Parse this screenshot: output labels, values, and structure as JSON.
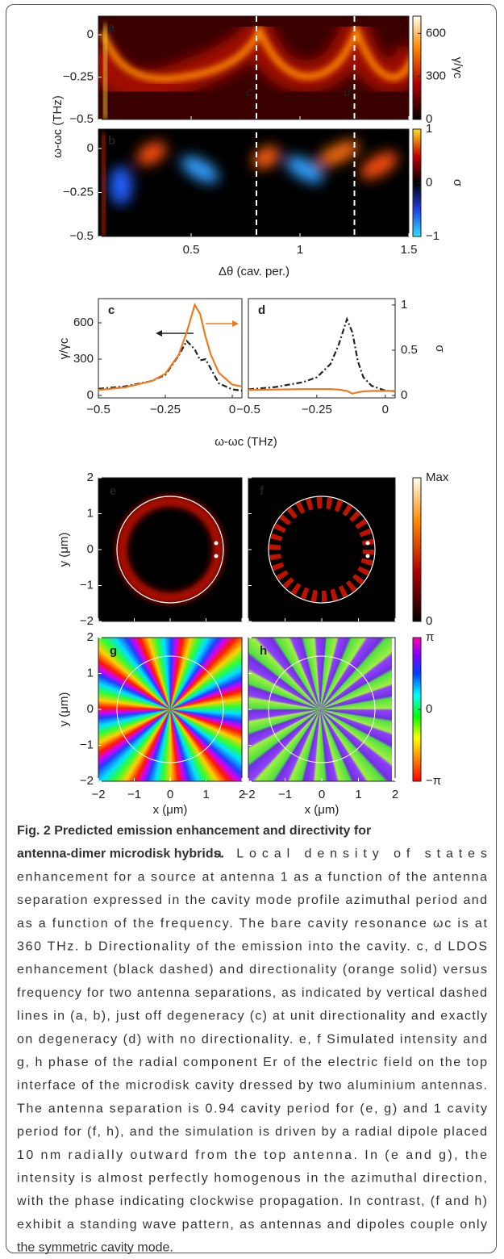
{
  "figure": {
    "panels_ab": {
      "xlabel": "Δθ (cav. per.)",
      "ylabel": "ω-ωc (THz)",
      "xlim": [
        0.074,
        1.5
      ],
      "xticks": [
        0.5,
        1,
        1.5
      ],
      "ylim": [
        -0.5,
        0.11
      ],
      "yticks": [
        {
          "value": 0,
          "label": "0"
        },
        {
          "value": -0.25,
          "label": "−0.25"
        },
        {
          "value": -0.5,
          "label": "−0.5"
        }
      ],
      "markers": [
        {
          "x": 0.8,
          "label": "c"
        },
        {
          "x": 1.25,
          "label": "d"
        }
      ],
      "a": {
        "label": "a",
        "colorbar": {
          "label": "γ/γc",
          "lim": [
            0,
            720
          ],
          "ticks": [
            0,
            300,
            600
          ]
        }
      },
      "b": {
        "label": "b",
        "colorbar": {
          "label": "σ",
          "lim": [
            -1,
            1
          ],
          "ticks": [
            {
              "value": -1,
              "label": "−1"
            },
            0,
            1
          ]
        }
      }
    },
    "panels_cd": {
      "type": "line",
      "xlabel": "ω-ωc (THz)",
      "ylabel": "γ/γc",
      "y2label": "σ",
      "xlim": [
        -0.5,
        0.036
      ],
      "xticks": [
        {
          "value": -0.5,
          "label": "−0.5"
        },
        {
          "value": -0.25,
          "label": "−0.25"
        },
        {
          "value": 0,
          "label": "0"
        }
      ],
      "ylim": [
        0,
        800
      ],
      "yticks": [
        0,
        300,
        600
      ],
      "y2lim": [
        0,
        1.07
      ],
      "y2ticks": [
        0,
        0.5,
        1
      ],
      "x": [
        -0.5,
        -0.4,
        -0.3,
        -0.25,
        -0.2,
        -0.17,
        -0.14,
        -0.12,
        -0.1,
        -0.08,
        -0.05,
        0,
        0.036
      ],
      "panels": [
        {
          "label": "c",
          "series": [
            {
              "color": "#222222",
              "dash": true,
              "values": [
                55,
                75,
                120,
                170,
                330,
                450,
                380,
                290,
                300,
                220,
                100,
                50,
                40
              ]
            },
            {
              "color": "#f07a1e",
              "axis": "y2",
              "values": [
                0.06,
                0.09,
                0.16,
                0.24,
                0.45,
                0.7,
                1.0,
                0.9,
                0.65,
                0.45,
                0.25,
                0.12,
                0.1
              ]
            }
          ]
        },
        {
          "label": "d",
          "series": [
            {
              "color": "#222222",
              "dash": true,
              "values": [
                50,
                70,
                110,
                150,
                260,
                420,
                630,
                520,
                280,
                150,
                80,
                40,
                35
              ]
            },
            {
              "color": "#f07a1e",
              "axis": "y2",
              "values": [
                0.06,
                0.065,
                0.07,
                0.07,
                0.07,
                0.065,
                0.05,
                0.02,
                0.035,
                0.045,
                0.05,
                0.05,
                0.05
              ]
            }
          ]
        }
      ]
    },
    "panels_efgh": {
      "xlabel": "x (μm)",
      "ylabel": "y (μm)",
      "lim": [
        -2,
        2
      ],
      "ticks": [
        {
          "value": -2,
          "label": "−2"
        },
        {
          "value": -1,
          "label": "−1"
        },
        0,
        1,
        2
      ],
      "labels": [
        "e",
        "f",
        "g",
        "h"
      ],
      "intensity_colorbar": {
        "lim": [
          0,
          1
        ],
        "ticks": [
          0,
          {
            "value": 1,
            "label": "Max"
          }
        ]
      },
      "phase_colorbar": {
        "lim": [
          -3.14159,
          3.14159
        ],
        "ticks": [
          {
            "value": -3.14159,
            "label": "−π"
          },
          0,
          {
            "value": 3.14159,
            "label": "π"
          }
        ]
      }
    }
  },
  "caption": {
    "title": [
      "Fig. 2 Predicted emission enhancement and directivity for",
      "antenna-dimer microdisk hybrids."
    ],
    "body": [
      "a Local density of states",
      "enhancement for a source at antenna 1 as a function of the antenna",
      "separation expressed in the cavity mode profile azimuthal period and",
      "as a function of the frequency. The bare cavity resonance ωc is at",
      "360 THz. b Directionality of the emission into the cavity. c, d LDOS",
      "enhancement (black dashed) and directionality (orange solid) versus",
      "frequency for two antenna separations, as indicated by vertical dashed",
      "lines in (a, b), just off degeneracy (c) at unit directionality and exactly",
      "on degeneracy (d) with no directionality. e, f Simulated intensity and",
      "g, h phase of the radial component Er of the electric field on the top",
      "interface of the microdisk cavity dressed by two aluminium antennas.",
      "The antenna separation is 0.94 cavity period for (e, g) and 1 cavity",
      "period for (f, h), and the simulation is driven by a radial dipole placed",
      "10 nm radially outward from the top antenna. In (e and g), the",
      "intensity is almost perfectly homogenous in the azimuthal direction,",
      "with the phase indicating clockwise propagation. In contrast, (f and h)",
      "exhibit a standing wave pattern, as antennas and dipoles couple only",
      "the symmetric cavity mode."
    ]
  }
}
